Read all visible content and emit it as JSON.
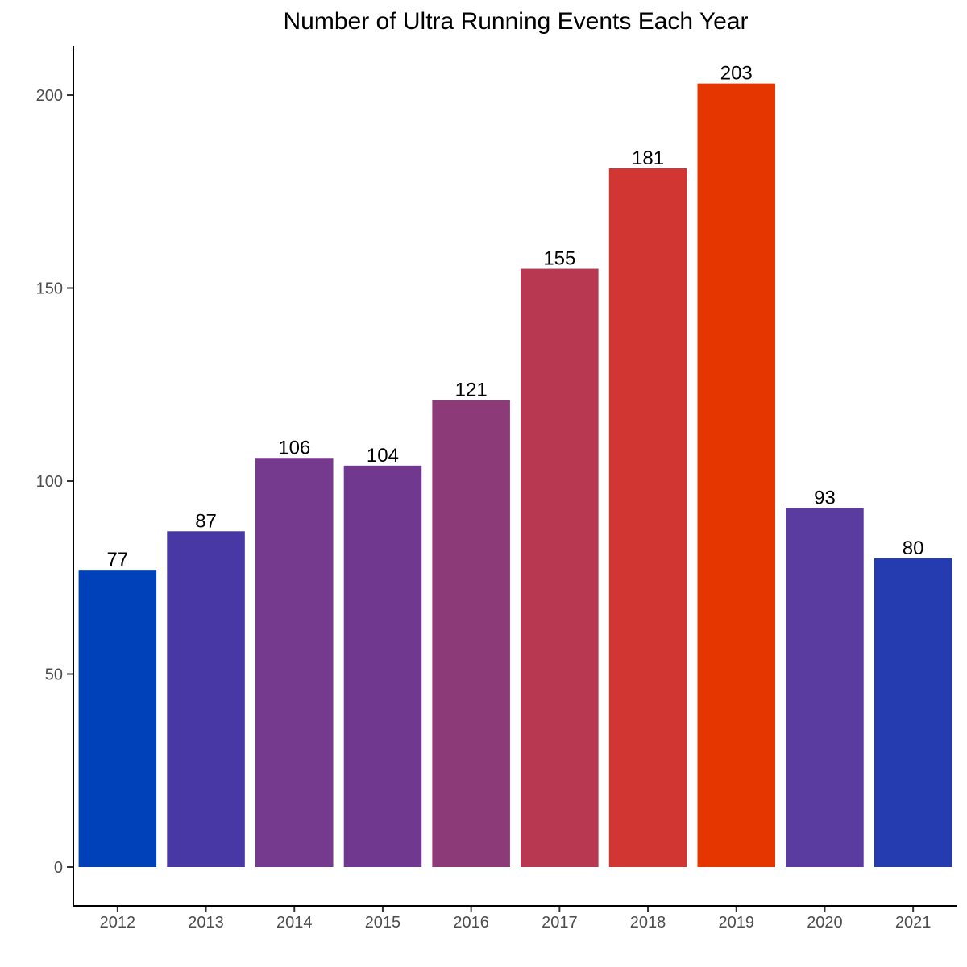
{
  "chart_data": {
    "type": "bar",
    "title": "Number of Ultra Running Events Each Year",
    "xlabel": "",
    "ylabel": "",
    "categories": [
      "2012",
      "2013",
      "2014",
      "2015",
      "2016",
      "2017",
      "2018",
      "2019",
      "2020",
      "2021"
    ],
    "values": [
      77,
      87,
      106,
      104,
      121,
      155,
      181,
      203,
      93,
      80
    ],
    "colors": [
      "#0040B8",
      "#4838A5",
      "#75398D",
      "#71388F",
      "#8C3A78",
      "#B83751",
      "#D23632",
      "#E53600",
      "#5A3BA0",
      "#253CB0"
    ],
    "ylim": [
      0,
      210
    ],
    "yticks": [
      0,
      50,
      100,
      150,
      200
    ],
    "ytick_labels": [
      "0",
      "50",
      "100",
      "150",
      "200"
    ],
    "grid": false,
    "legend": "none"
  }
}
